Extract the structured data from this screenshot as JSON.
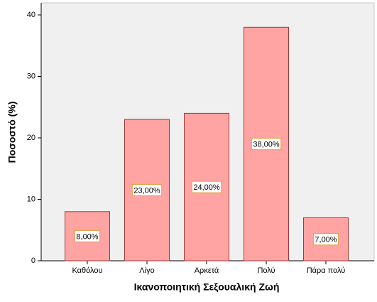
{
  "chart_data": {
    "type": "bar",
    "x_label": "Ικανοποιητική Σεξουαλική Ζωή",
    "y_label": "Ποσοστό (%)",
    "categories": [
      "Καθόλου",
      "Λίγο",
      "Αρκετά",
      "Πολύ",
      "Πάρα πολύ"
    ],
    "values": [
      8,
      23,
      24,
      38,
      7
    ],
    "value_labels": [
      "8,00%",
      "23,00%",
      "24,00%",
      "38,00%",
      "7,00%"
    ],
    "color": "#ffa3a3",
    "ylim": [
      0,
      40
    ],
    "yticks": [
      0,
      10,
      20,
      30,
      40
    ]
  }
}
